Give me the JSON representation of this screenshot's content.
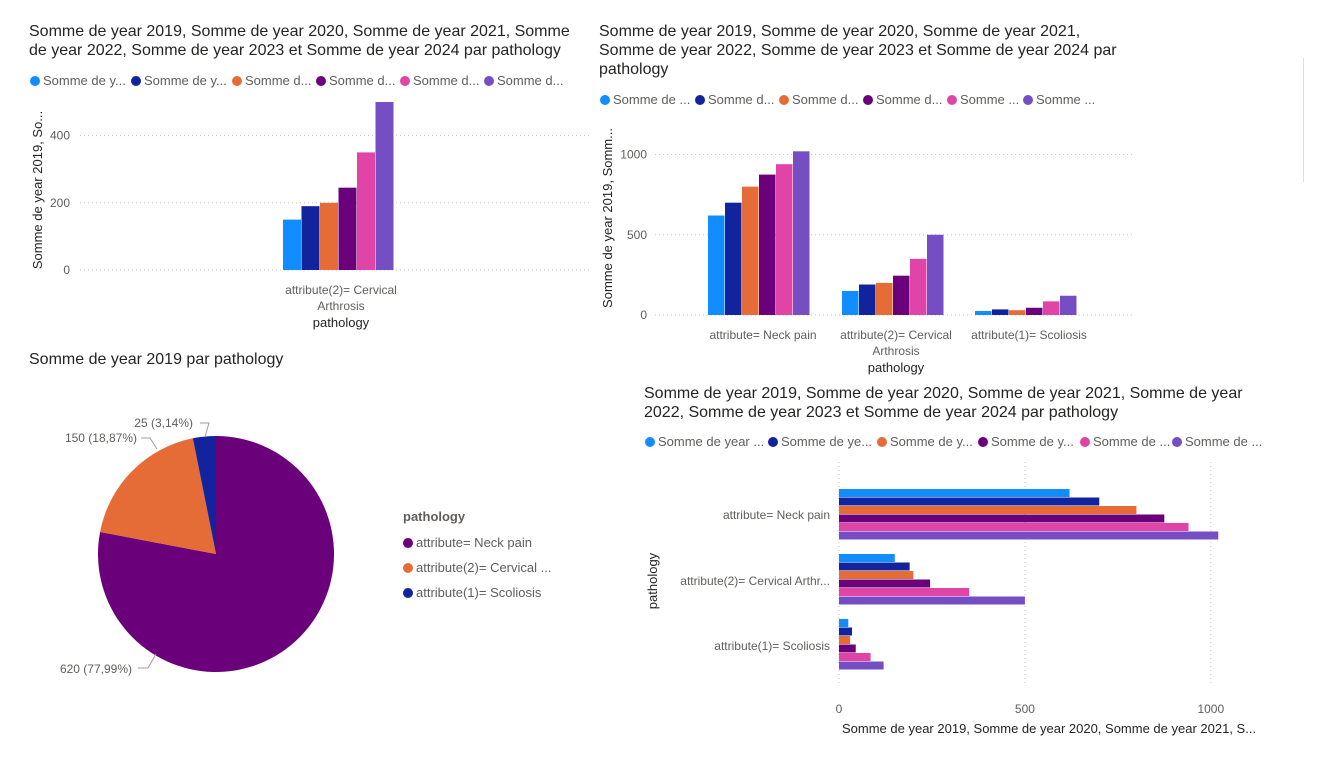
{
  "colors": [
    "#118DFF",
    "#12239E",
    "#E66C37",
    "#6B007B",
    "#E044A7",
    "#744EC2"
  ],
  "pie_colors": [
    "#6B007B",
    "#E66C37",
    "#12239E"
  ],
  "charts": {
    "c1": {
      "title_line1": "Somme de year 2019, Somme de year 2020, Somme de year 2021, Somme",
      "title_line2": "de year 2022, Somme de year 2023 et Somme de year 2024 par pathology",
      "legend": [
        "Somme de y...",
        "Somme de y...",
        "Somme d...",
        "Somme d...",
        "Somme d...",
        "Somme d..."
      ],
      "ylabel": "Somme de year 2019, So...",
      "xlabel": "pathology",
      "category_line1": "attribute(2)= Cervical",
      "category_line2": "Arthrosis"
    },
    "c2": {
      "title_line1": "Somme de year 2019, Somme de year 2020, Somme de year 2021,",
      "title_line2": "Somme de year 2022, Somme de year 2023 et Somme de year 2024 par",
      "title_line3": "pathology",
      "legend": [
        "Somme de ...",
        "Somme d...",
        "Somme d...",
        "Somme d...",
        "Somme ...",
        "Somme ..."
      ],
      "ylabel": "Somme de year 2019, Somm...",
      "xlabel": "pathology",
      "cat1": "attribute= Neck pain",
      "cat2_line1": "attribute(2)= Cervical",
      "cat2_line2": "Arthrosis",
      "cat3": "attribute(1)= Scoliosis"
    },
    "c3": {
      "title": "Somme de year 2019 par pathology",
      "legend_title": "pathology",
      "legend": [
        "attribute= Neck pain",
        "attribute(2)= Cervical ...",
        "attribute(1)= Scoliosis"
      ],
      "label_scoliosis": "25 (3,14%)",
      "label_cervical": "150 (18,87%)",
      "label_neck": "620 (77,99%)"
    },
    "c4": {
      "title_line1": "Somme de year 2019, Somme de year 2020, Somme de year 2021, Somme de year",
      "title_line2": "2022, Somme de year 2023 et Somme de year 2024 par pathology",
      "legend": [
        "Somme de year ...",
        "Somme de ye...",
        "Somme de y...",
        "Somme de y...",
        "Somme de ...",
        "Somme de ..."
      ],
      "ylabel": "pathology",
      "xlabel": "Somme de year 2019, Somme de year 2020, Somme de year 2021, S...",
      "cat1": "attribute= Neck pain",
      "cat2": "attribute(2)= Cervical Arthr...",
      "cat3": "attribute(1)= Scoliosis"
    }
  },
  "chart_data": [
    {
      "type": "bar",
      "categories": [
        "attribute(2)= Cervical Arthrosis"
      ],
      "series": [
        {
          "values": [
            150
          ]
        },
        {
          "values": [
            190
          ]
        },
        {
          "values": [
            200
          ]
        },
        {
          "values": [
            245
          ]
        },
        {
          "values": [
            350
          ]
        },
        {
          "values": [
            500
          ]
        }
      ],
      "ylim": [
        0,
        500
      ],
      "yticks": [
        0,
        200,
        400
      ],
      "grid": true,
      "legend_position": "top-left"
    },
    {
      "type": "bar",
      "categories": [
        "attribute= Neck pain",
        "attribute(2)= Cervical Arthrosis",
        "attribute(1)= Scoliosis"
      ],
      "series": [
        {
          "values": [
            620,
            150,
            25
          ]
        },
        {
          "values": [
            700,
            190,
            35
          ]
        },
        {
          "values": [
            800,
            200,
            30
          ]
        },
        {
          "values": [
            875,
            245,
            45
          ]
        },
        {
          "values": [
            940,
            350,
            85
          ]
        },
        {
          "values": [
            1020,
            500,
            120
          ]
        }
      ],
      "ylim": [
        0,
        1100
      ],
      "yticks": [
        0,
        500,
        1000
      ],
      "grid": true,
      "legend_position": "top-left"
    },
    {
      "type": "pie",
      "categories": [
        "attribute= Neck pain",
        "attribute(2)= Cervical Arthrosis",
        "attribute(1)= Scoliosis"
      ],
      "values": [
        620,
        150,
        25
      ],
      "legend_position": "right"
    },
    {
      "type": "bar",
      "orientation": "horizontal",
      "categories": [
        "attribute= Neck pain",
        "attribute(2)= Cervical Arthrosis",
        "attribute(1)= Scoliosis"
      ],
      "series": [
        {
          "values": [
            620,
            150,
            25
          ]
        },
        {
          "values": [
            700,
            190,
            35
          ]
        },
        {
          "values": [
            800,
            200,
            30
          ]
        },
        {
          "values": [
            875,
            245,
            45
          ]
        },
        {
          "values": [
            940,
            350,
            85
          ]
        },
        {
          "values": [
            1020,
            500,
            120
          ]
        }
      ],
      "xlim": [
        0,
        1100
      ],
      "xticks": [
        0,
        500,
        1000
      ],
      "grid": true,
      "legend_position": "top-left"
    }
  ]
}
